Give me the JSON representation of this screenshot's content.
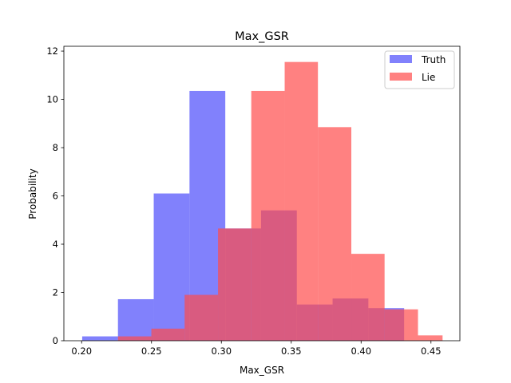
{
  "chart_data": {
    "type": "histogram",
    "title": "Max_GSR",
    "xlabel": "Max_GSR",
    "ylabel": "Probability",
    "xlim": [
      0.1873,
      0.4707
    ],
    "ylim": [
      0,
      12.2
    ],
    "xticks": [
      0.2,
      0.25,
      0.3,
      0.35,
      0.4,
      0.45
    ],
    "xtick_labels": [
      "0.20",
      "0.25",
      "0.30",
      "0.35",
      "0.40",
      "0.45"
    ],
    "yticks": [
      0,
      2,
      4,
      6,
      8,
      10,
      12
    ],
    "ytick_labels": [
      "0",
      "2",
      "4",
      "6",
      "8",
      "10",
      "12"
    ],
    "legend_position": "top-right",
    "series": [
      {
        "name": "Truth",
        "color": "#4b4bfb",
        "alpha": 0.7,
        "bin_edges": [
          0.2004,
          0.226,
          0.2516,
          0.2772,
          0.3028,
          0.3284,
          0.354,
          0.3796,
          0.4052,
          0.4308
        ],
        "values": [
          0.18,
          1.72,
          6.1,
          10.35,
          4.65,
          5.4,
          1.5,
          1.75,
          1.35
        ]
      },
      {
        "name": "Lie",
        "color": "#ff4b4b",
        "alpha": 0.7,
        "bin_edges": [
          0.226,
          0.2499,
          0.2737,
          0.2976,
          0.3214,
          0.3453,
          0.3691,
          0.393,
          0.4168,
          0.4407,
          0.4583
        ],
        "values": [
          0.18,
          0.5,
          1.9,
          4.65,
          10.35,
          11.55,
          8.85,
          3.6,
          1.3,
          0.22
        ]
      }
    ]
  }
}
